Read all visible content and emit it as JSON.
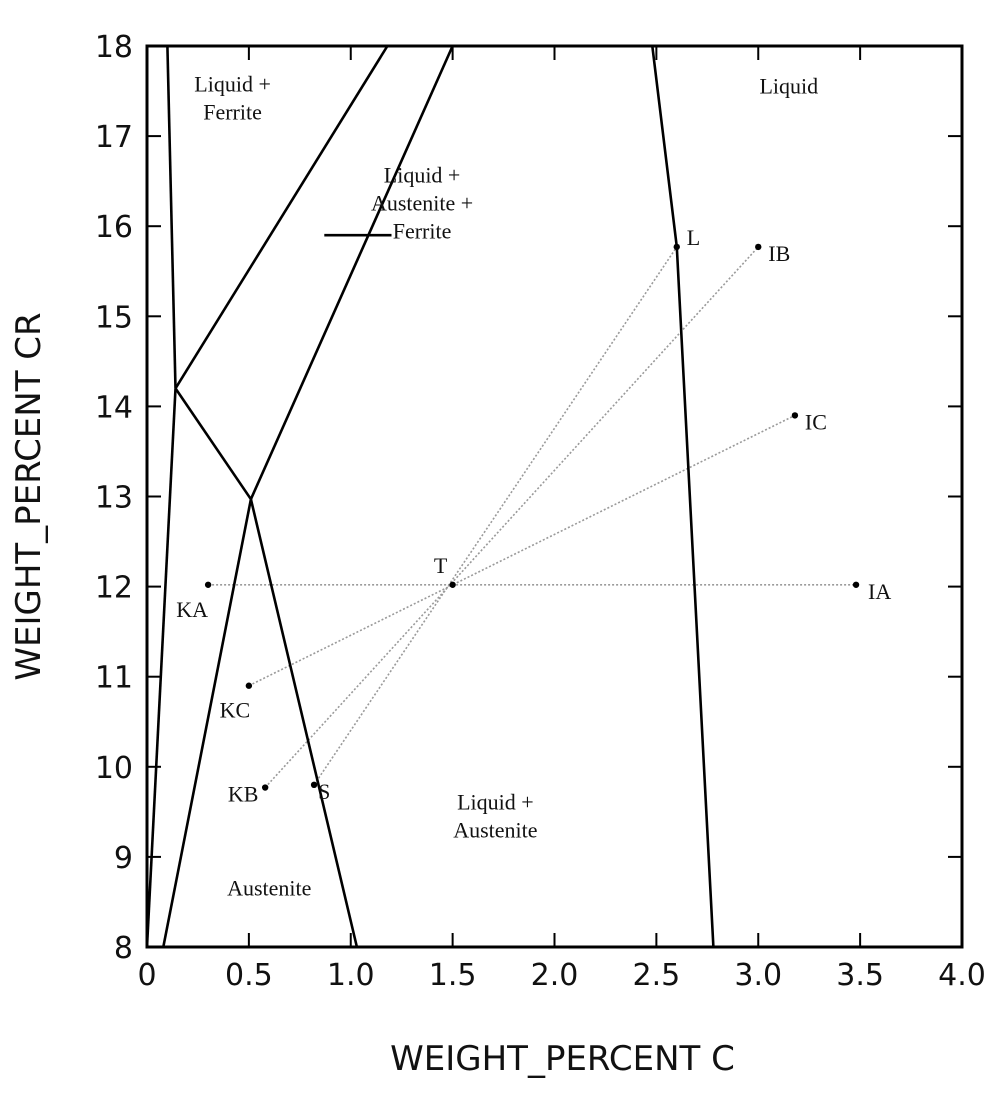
{
  "chart_data": {
    "type": "line",
    "title": "",
    "xlabel": "WEIGHT_PERCENT C",
    "ylabel": "WEIGHT_PERCENT CR",
    "xlim": [
      0,
      4.0
    ],
    "ylim": [
      8,
      18
    ],
    "x_ticks": [
      "0",
      "0.5",
      "1.0",
      "1.5",
      "2.0",
      "2.5",
      "3.0",
      "3.5",
      "4.0"
    ],
    "y_ticks": [
      "8",
      "9",
      "10",
      "11",
      "12",
      "13",
      "14",
      "15",
      "16",
      "17",
      "18"
    ],
    "grid": false,
    "boundaries": [
      {
        "points": [
          [
            0.1,
            18.0
          ],
          [
            0.14,
            14.2
          ]
        ]
      },
      {
        "points": [
          [
            0.14,
            14.2
          ],
          [
            1.18,
            18.0
          ]
        ]
      },
      {
        "points": [
          [
            0.14,
            14.2
          ],
          [
            0.51,
            12.97
          ]
        ]
      },
      {
        "points": [
          [
            0.51,
            12.97
          ],
          [
            1.5,
            18.0
          ]
        ]
      },
      {
        "points": [
          [
            0.51,
            12.97
          ],
          [
            1.03,
            8.0
          ]
        ]
      },
      {
        "points": [
          [
            0.51,
            12.97
          ],
          [
            0.08,
            8.0
          ]
        ]
      },
      {
        "points": [
          [
            0.14,
            14.2
          ],
          [
            0.0,
            8.0
          ]
        ]
      },
      {
        "points": [
          [
            2.48,
            18.0
          ],
          [
            2.6,
            15.77
          ],
          [
            2.78,
            8.0
          ]
        ]
      },
      {
        "points": [
          [
            0.87,
            15.9
          ],
          [
            1.2,
            15.9
          ]
        ]
      }
    ],
    "tie_lines": [
      {
        "points": [
          [
            0.3,
            12.02
          ],
          [
            3.48,
            12.02
          ]
        ]
      },
      {
        "points": [
          [
            0.58,
            9.77
          ],
          [
            3.0,
            15.77
          ]
        ]
      },
      {
        "points": [
          [
            0.5,
            10.9
          ],
          [
            3.18,
            13.9
          ]
        ]
      },
      {
        "points": [
          [
            0.82,
            9.8
          ],
          [
            2.6,
            15.77
          ]
        ]
      }
    ],
    "points": [
      {
        "label": "KA",
        "x": 0.3,
        "y": 12.02
      },
      {
        "label": "T",
        "x": 1.5,
        "y": 12.02
      },
      {
        "label": "IA",
        "x": 3.48,
        "y": 12.02
      },
      {
        "label": "L",
        "x": 2.6,
        "y": 15.77
      },
      {
        "label": "IB",
        "x": 3.0,
        "y": 15.77
      },
      {
        "label": "IC",
        "x": 3.18,
        "y": 13.9
      },
      {
        "label": "KC",
        "x": 0.5,
        "y": 10.9
      },
      {
        "label": "KB",
        "x": 0.58,
        "y": 9.77
      },
      {
        "label": "S",
        "x": 0.82,
        "y": 9.8
      }
    ],
    "regions": [
      {
        "lines": [
          "Liquid +",
          "Ferrite"
        ],
        "x": 0.42,
        "y": 17.42
      },
      {
        "lines": [
          "Liquid"
        ],
        "x": 3.15,
        "y": 17.55
      },
      {
        "lines": [
          "Liquid +",
          "Austenite +",
          "Ferrite"
        ],
        "x": 1.35,
        "y": 16.25
      },
      {
        "lines": [
          "Liquid +",
          "Austenite"
        ],
        "x": 1.71,
        "y": 9.45
      },
      {
        "lines": [
          "Austenite"
        ],
        "x": 0.6,
        "y": 8.65
      }
    ]
  }
}
